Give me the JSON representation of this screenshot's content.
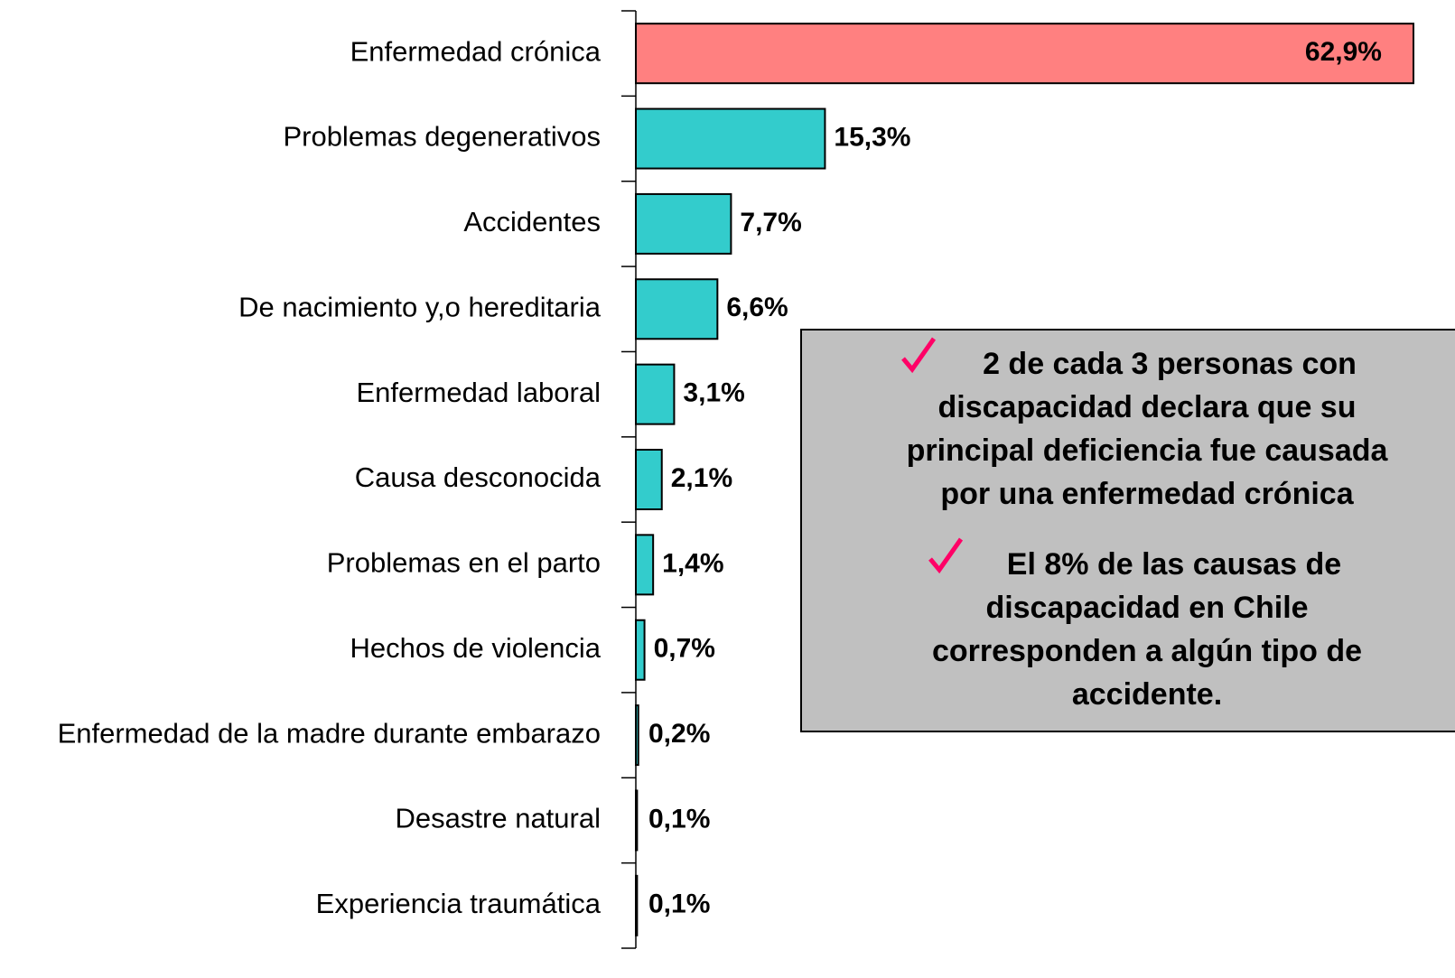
{
  "chart_data": {
    "type": "bar",
    "orientation": "horizontal",
    "categories": [
      "Enfermedad crónica",
      "Problemas degenerativos",
      "Accidentes",
      "De nacimiento y,o hereditaria",
      "Enfermedad laboral",
      "Causa desconocida",
      "Problemas en el parto",
      "Hechos de violencia",
      "Enfermedad de la madre durante embarazo",
      "Desastre natural",
      "Experiencia traumática"
    ],
    "values": [
      62.9,
      15.3,
      7.7,
      6.6,
      3.1,
      2.1,
      1.4,
      0.7,
      0.2,
      0.1,
      0.1
    ],
    "value_labels": [
      "62,9%",
      "15,3%",
      "7,7%",
      "6,6%",
      "3,1%",
      "2,1%",
      "1,4%",
      "0,7%",
      "0,2%",
      "0,1%",
      "0,1%"
    ],
    "colors": [
      "#ff8080",
      "#33cccc",
      "#33cccc",
      "#33cccc",
      "#33cccc",
      "#33cccc",
      "#33cccc",
      "#33cccc",
      "#33cccc",
      "#33cccc",
      "#33cccc"
    ],
    "annotation": [
      [
        "2 de cada 3 personas con",
        "discapacidad declara que su",
        "principal deficiencia fue causada",
        "por una enfermedad  crónica"
      ],
      [
        "El 8% de las causas de",
        "discapacidad en Chile",
        "corresponden a algún tipo de",
        "accidente."
      ]
    ]
  }
}
